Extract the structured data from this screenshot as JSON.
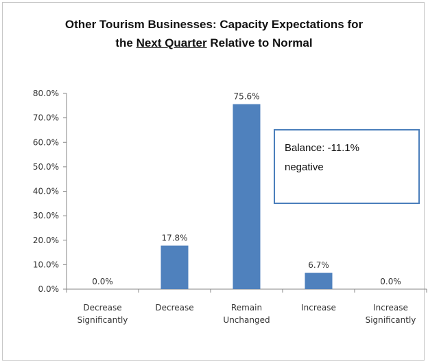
{
  "chart_data": {
    "type": "bar",
    "title_line1": "Other Tourism Businesses: Capacity Expectations  for",
    "title_line2_pre": "the ",
    "title_line2_underlined": "Next Quarter",
    "title_line2_post": " Relative to Normal",
    "categories": [
      [
        "Decrease",
        "Significantly"
      ],
      [
        "Decrease"
      ],
      [
        "Remain",
        "Unchanged"
      ],
      [
        "Increase"
      ],
      [
        "Increase",
        "Significantly"
      ]
    ],
    "values": [
      0.0,
      17.8,
      75.6,
      6.7,
      0.0
    ],
    "data_labels": [
      "0.0%",
      "17.8%",
      "75.6%",
      "6.7%",
      "0.0%"
    ],
    "ylim": [
      0,
      80
    ],
    "yticks": [
      0,
      10,
      20,
      30,
      40,
      50,
      60,
      70,
      80
    ],
    "ytick_labels": [
      "0.0%",
      "10.0%",
      "20.0%",
      "30.0%",
      "40.0%",
      "50.0%",
      "60.0%",
      "70.0%",
      "80.0%"
    ],
    "bar_color": "#4f81bd",
    "grid": false,
    "annotation": {
      "line1": "Balance: -11.1%",
      "line2": "negative",
      "border_color": "#4a7ebb"
    }
  }
}
